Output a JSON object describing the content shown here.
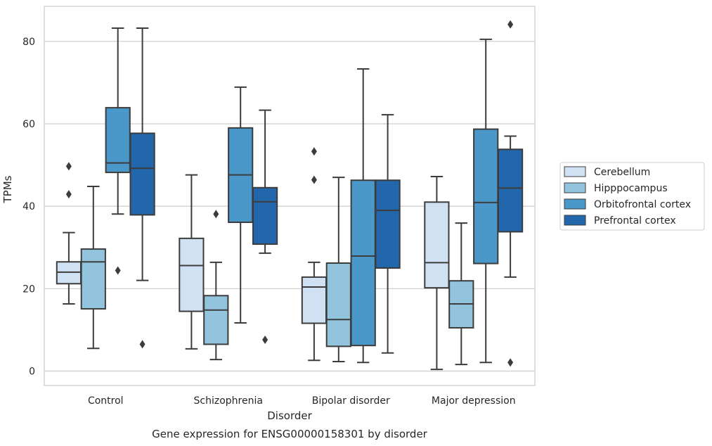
{
  "chart_data": {
    "type": "box",
    "title": "Gene expression for ENSG00000158301 by disorder",
    "xlabel": "Disorder",
    "ylabel": "TPMs",
    "ylim": [
      -3.5,
      88.5
    ],
    "yticks": [
      0,
      20,
      40,
      60,
      80
    ],
    "grid": true,
    "legend_placement": "right, outside",
    "categories": [
      "Control",
      "Schizophrenia",
      "Bipolar disorder",
      "Major depression"
    ],
    "series": [
      {
        "name": "Cerebellum",
        "color": "#cfe1f2",
        "boxes": [
          {
            "whisker_low": 16.3,
            "q1": 21.2,
            "median": 24.0,
            "q3": 26.5,
            "whisker_high": 33.6,
            "outliers": [
              49.7,
              42.9
            ]
          },
          {
            "whisker_low": 5.4,
            "q1": 14.5,
            "median": 25.6,
            "q3": 32.2,
            "whisker_high": 47.6,
            "outliers": []
          },
          {
            "whisker_low": 2.6,
            "q1": 11.6,
            "median": 20.4,
            "q3": 22.8,
            "whisker_high": 26.4,
            "outliers": [
              53.3,
              46.4
            ]
          },
          {
            "whisker_low": 0.4,
            "q1": 20.2,
            "median": 26.3,
            "q3": 41.0,
            "whisker_high": 47.2,
            "outliers": []
          }
        ]
      },
      {
        "name": "Hipppocampus",
        "color": "#93c4de",
        "boxes": [
          {
            "whisker_low": 5.5,
            "q1": 15.1,
            "median": 26.5,
            "q3": 29.6,
            "whisker_high": 44.8,
            "outliers": []
          },
          {
            "whisker_low": 2.8,
            "q1": 6.5,
            "median": 14.8,
            "q3": 18.3,
            "whisker_high": 26.4,
            "outliers": [
              38.1
            ]
          },
          {
            "whisker_low": 2.3,
            "q1": 6.0,
            "median": 12.5,
            "q3": 26.2,
            "whisker_high": 47.0,
            "outliers": []
          },
          {
            "whisker_low": 1.6,
            "q1": 10.5,
            "median": 16.3,
            "q3": 21.9,
            "whisker_high": 35.9,
            "outliers": []
          }
        ]
      },
      {
        "name": "Orbitofrontal cortex",
        "color": "#4a98c9",
        "boxes": [
          {
            "whisker_low": 38.1,
            "q1": 48.2,
            "median": 50.5,
            "q3": 63.9,
            "whisker_high": 83.2,
            "outliers": [
              24.4
            ]
          },
          {
            "whisker_low": 11.7,
            "q1": 36.1,
            "median": 47.6,
            "q3": 59.0,
            "whisker_high": 68.9,
            "outliers": []
          },
          {
            "whisker_low": 2.1,
            "q1": 6.2,
            "median": 27.9,
            "q3": 46.3,
            "whisker_high": 73.3,
            "outliers": []
          },
          {
            "whisker_low": 2.1,
            "q1": 26.1,
            "median": 40.9,
            "q3": 58.7,
            "whisker_high": 80.5,
            "outliers": []
          }
        ]
      },
      {
        "name": "Prefrontal cortex",
        "color": "#2266ac",
        "boxes": [
          {
            "whisker_low": 22.0,
            "q1": 37.9,
            "median": 49.2,
            "q3": 57.7,
            "whisker_high": 83.2,
            "outliers": [
              6.5
            ]
          },
          {
            "whisker_low": 28.6,
            "q1": 30.8,
            "median": 41.1,
            "q3": 44.5,
            "whisker_high": 63.3,
            "outliers": [
              7.6
            ]
          },
          {
            "whisker_low": 4.4,
            "q1": 25.0,
            "median": 39.0,
            "q3": 46.3,
            "whisker_high": 62.2,
            "outliers": []
          },
          {
            "whisker_low": 22.8,
            "q1": 33.8,
            "median": 44.4,
            "q3": 53.8,
            "whisker_high": 57.0,
            "outliers": [
              2.1,
              84.1
            ]
          }
        ]
      }
    ],
    "style": {
      "grid_color": "#cccccc",
      "frame_color": "#cccccc",
      "box_edge_color": "#3c3c3c"
    }
  }
}
